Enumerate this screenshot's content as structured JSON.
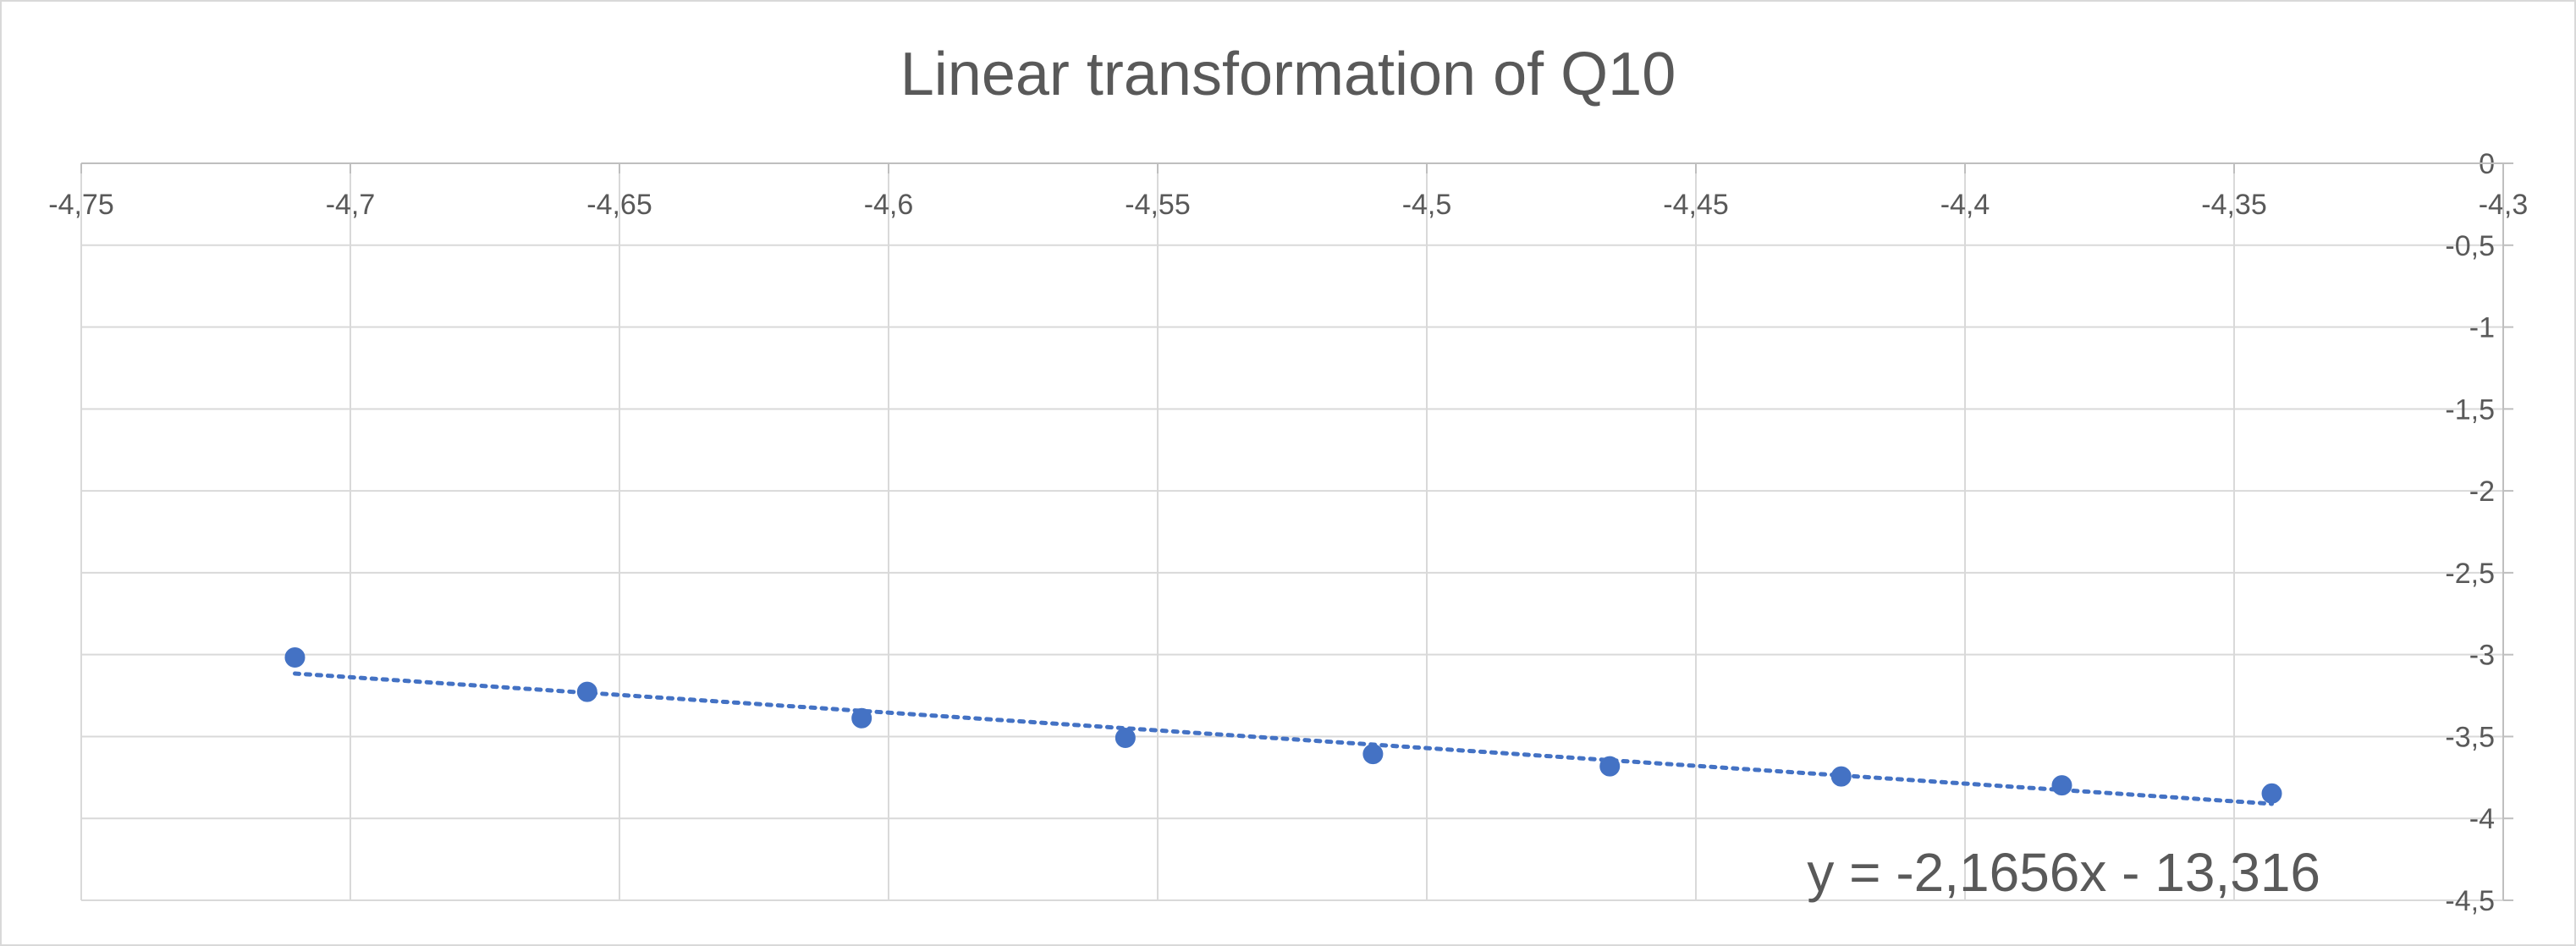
{
  "chart_data": {
    "type": "scatter",
    "title": "Linear transformation of Q10",
    "xlabel": "",
    "ylabel": "",
    "xlim": [
      -4.75,
      -4.3
    ],
    "ylim": [
      -4.5,
      0
    ],
    "x_ticks": [
      "-4,75",
      "-4,7",
      "-4,65",
      "-4,6",
      "-4,55",
      "-4,5",
      "-4,45",
      "-4,4",
      "-4,35",
      "-4,3"
    ],
    "y_ticks": [
      "0",
      "-0,5",
      "-1",
      "-1,5",
      "-2",
      "-2,5",
      "-3",
      "-3,5",
      "-4",
      "-4,5"
    ],
    "grid": true,
    "x_axis_position": "top",
    "y_axis_position": "right",
    "series": [
      {
        "color": "#4472C4",
        "points": [
          {
            "x": -4.7103,
            "y": -3.017
          },
          {
            "x": -4.656,
            "y": -3.227
          },
          {
            "x": -4.605,
            "y": -3.388
          },
          {
            "x": -4.556,
            "y": -3.508
          },
          {
            "x": -4.51,
            "y": -3.607
          },
          {
            "x": -4.466,
            "y": -3.682
          },
          {
            "x": -4.423,
            "y": -3.744
          },
          {
            "x": -4.382,
            "y": -3.798
          },
          {
            "x": -4.343,
            "y": -3.848
          }
        ]
      }
    ],
    "trendline": {
      "type": "linear",
      "style": "dotted",
      "color": "#4472C4",
      "slope": -2.1656,
      "intercept": -13.316,
      "x_range": [
        -4.7103,
        -4.343
      ],
      "equation_label": "y = -2,1656x - 13,316"
    }
  }
}
